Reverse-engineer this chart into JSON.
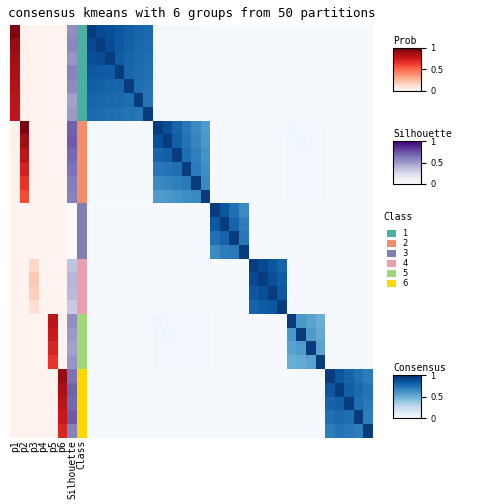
{
  "title": "consensus kmeans with 6 groups from 50 partitions",
  "n_groups": 6,
  "group_sizes": [
    7,
    6,
    4,
    4,
    4,
    5
  ],
  "class_colors": [
    "#4DAF9F",
    "#F28E6B",
    "#8080B0",
    "#E8A0B0",
    "#A0D878",
    "#FFD700"
  ],
  "title_fontsize": 9,
  "consensus_matrix": [
    [
      0.95,
      0.9,
      0.88,
      0.85,
      0.82,
      0.8,
      0.78,
      0.02,
      0.02,
      0.02,
      0.02,
      0.02,
      0.01,
      0.01,
      0.01,
      0.01,
      0.01,
      0.01,
      0.01,
      0.01,
      0.01,
      0.01,
      0.01,
      0.01,
      0.01,
      0.01,
      0.01,
      0.01,
      0.01,
      0.01
    ],
    [
      0.9,
      0.95,
      0.89,
      0.84,
      0.81,
      0.79,
      0.77,
      0.02,
      0.02,
      0.02,
      0.02,
      0.02,
      0.01,
      0.01,
      0.01,
      0.01,
      0.01,
      0.01,
      0.01,
      0.01,
      0.01,
      0.01,
      0.01,
      0.01,
      0.01,
      0.01,
      0.01,
      0.01,
      0.01,
      0.01
    ],
    [
      0.88,
      0.89,
      0.95,
      0.83,
      0.8,
      0.78,
      0.76,
      0.02,
      0.02,
      0.02,
      0.02,
      0.02,
      0.01,
      0.01,
      0.01,
      0.01,
      0.01,
      0.01,
      0.01,
      0.01,
      0.01,
      0.01,
      0.01,
      0.01,
      0.01,
      0.01,
      0.01,
      0.01,
      0.01,
      0.01
    ],
    [
      0.85,
      0.84,
      0.83,
      0.95,
      0.79,
      0.77,
      0.75,
      0.02,
      0.02,
      0.02,
      0.02,
      0.02,
      0.01,
      0.01,
      0.01,
      0.01,
      0.01,
      0.01,
      0.01,
      0.01,
      0.01,
      0.01,
      0.01,
      0.01,
      0.01,
      0.01,
      0.01,
      0.01,
      0.01,
      0.01
    ],
    [
      0.82,
      0.81,
      0.8,
      0.79,
      0.95,
      0.76,
      0.74,
      0.02,
      0.02,
      0.02,
      0.02,
      0.02,
      0.01,
      0.01,
      0.01,
      0.01,
      0.01,
      0.01,
      0.01,
      0.01,
      0.01,
      0.01,
      0.01,
      0.01,
      0.01,
      0.01,
      0.01,
      0.01,
      0.01,
      0.01
    ],
    [
      0.8,
      0.79,
      0.78,
      0.77,
      0.76,
      0.95,
      0.73,
      0.02,
      0.02,
      0.02,
      0.02,
      0.02,
      0.01,
      0.01,
      0.01,
      0.01,
      0.01,
      0.01,
      0.01,
      0.01,
      0.01,
      0.01,
      0.01,
      0.01,
      0.01,
      0.01,
      0.01,
      0.01,
      0.01,
      0.01
    ],
    [
      0.78,
      0.77,
      0.76,
      0.75,
      0.74,
      0.73,
      0.95,
      0.02,
      0.02,
      0.02,
      0.02,
      0.02,
      0.01,
      0.01,
      0.01,
      0.01,
      0.01,
      0.01,
      0.01,
      0.01,
      0.01,
      0.01,
      0.01,
      0.01,
      0.01,
      0.01,
      0.01,
      0.01,
      0.01,
      0.01
    ],
    [
      0.02,
      0.02,
      0.02,
      0.02,
      0.02,
      0.02,
      0.02,
      0.95,
      0.88,
      0.8,
      0.72,
      0.65,
      0.58,
      0.01,
      0.01,
      0.01,
      0.01,
      0.01,
      0.01,
      0.01,
      0.01,
      0.04,
      0.03,
      0.03,
      0.03,
      0.01,
      0.01,
      0.01,
      0.01,
      0.01
    ],
    [
      0.02,
      0.02,
      0.02,
      0.02,
      0.02,
      0.02,
      0.02,
      0.88,
      0.95,
      0.82,
      0.74,
      0.67,
      0.6,
      0.01,
      0.01,
      0.01,
      0.01,
      0.01,
      0.01,
      0.01,
      0.01,
      0.03,
      0.04,
      0.03,
      0.03,
      0.01,
      0.01,
      0.01,
      0.01,
      0.01
    ],
    [
      0.02,
      0.02,
      0.02,
      0.02,
      0.02,
      0.02,
      0.02,
      0.8,
      0.82,
      0.95,
      0.76,
      0.69,
      0.62,
      0.01,
      0.01,
      0.01,
      0.01,
      0.01,
      0.01,
      0.01,
      0.01,
      0.03,
      0.03,
      0.03,
      0.03,
      0.01,
      0.01,
      0.01,
      0.01,
      0.01
    ],
    [
      0.02,
      0.02,
      0.02,
      0.02,
      0.02,
      0.02,
      0.02,
      0.72,
      0.74,
      0.76,
      0.95,
      0.71,
      0.64,
      0.01,
      0.01,
      0.01,
      0.01,
      0.01,
      0.01,
      0.01,
      0.01,
      0.03,
      0.03,
      0.03,
      0.03,
      0.01,
      0.01,
      0.01,
      0.01,
      0.01
    ],
    [
      0.02,
      0.02,
      0.02,
      0.02,
      0.02,
      0.02,
      0.02,
      0.65,
      0.67,
      0.69,
      0.71,
      0.95,
      0.66,
      0.01,
      0.01,
      0.01,
      0.01,
      0.01,
      0.01,
      0.01,
      0.01,
      0.03,
      0.03,
      0.03,
      0.03,
      0.01,
      0.01,
      0.01,
      0.01,
      0.01
    ],
    [
      0.02,
      0.02,
      0.02,
      0.02,
      0.02,
      0.02,
      0.02,
      0.58,
      0.6,
      0.62,
      0.64,
      0.66,
      0.95,
      0.01,
      0.01,
      0.01,
      0.01,
      0.01,
      0.01,
      0.01,
      0.01,
      0.03,
      0.03,
      0.03,
      0.03,
      0.01,
      0.01,
      0.01,
      0.01,
      0.01
    ],
    [
      0.01,
      0.01,
      0.01,
      0.01,
      0.01,
      0.01,
      0.01,
      0.01,
      0.01,
      0.01,
      0.01,
      0.01,
      0.01,
      0.95,
      0.85,
      0.75,
      0.65,
      0.01,
      0.01,
      0.01,
      0.01,
      0.01,
      0.01,
      0.01,
      0.01,
      0.01,
      0.01,
      0.01,
      0.01,
      0.01
    ],
    [
      0.01,
      0.01,
      0.01,
      0.01,
      0.01,
      0.01,
      0.01,
      0.01,
      0.01,
      0.01,
      0.01,
      0.01,
      0.01,
      0.85,
      0.95,
      0.8,
      0.7,
      0.01,
      0.01,
      0.01,
      0.01,
      0.01,
      0.01,
      0.01,
      0.01,
      0.01,
      0.01,
      0.01,
      0.01,
      0.01
    ],
    [
      0.01,
      0.01,
      0.01,
      0.01,
      0.01,
      0.01,
      0.01,
      0.01,
      0.01,
      0.01,
      0.01,
      0.01,
      0.01,
      0.75,
      0.8,
      0.95,
      0.72,
      0.01,
      0.01,
      0.01,
      0.01,
      0.01,
      0.01,
      0.01,
      0.01,
      0.01,
      0.01,
      0.01,
      0.01,
      0.01
    ],
    [
      0.01,
      0.01,
      0.01,
      0.01,
      0.01,
      0.01,
      0.01,
      0.01,
      0.01,
      0.01,
      0.01,
      0.01,
      0.01,
      0.65,
      0.7,
      0.72,
      0.95,
      0.01,
      0.01,
      0.01,
      0.01,
      0.01,
      0.01,
      0.01,
      0.01,
      0.01,
      0.01,
      0.01,
      0.01,
      0.01
    ],
    [
      0.01,
      0.01,
      0.01,
      0.01,
      0.01,
      0.01,
      0.01,
      0.01,
      0.01,
      0.01,
      0.01,
      0.01,
      0.01,
      0.01,
      0.01,
      0.01,
      0.01,
      0.95,
      0.9,
      0.85,
      0.8,
      0.01,
      0.01,
      0.01,
      0.01,
      0.01,
      0.01,
      0.01,
      0.01,
      0.01
    ],
    [
      0.01,
      0.01,
      0.01,
      0.01,
      0.01,
      0.01,
      0.01,
      0.01,
      0.01,
      0.01,
      0.01,
      0.01,
      0.01,
      0.01,
      0.01,
      0.01,
      0.01,
      0.9,
      0.95,
      0.88,
      0.83,
      0.01,
      0.01,
      0.01,
      0.01,
      0.01,
      0.01,
      0.01,
      0.01,
      0.01
    ],
    [
      0.01,
      0.01,
      0.01,
      0.01,
      0.01,
      0.01,
      0.01,
      0.01,
      0.01,
      0.01,
      0.01,
      0.01,
      0.01,
      0.01,
      0.01,
      0.01,
      0.01,
      0.85,
      0.88,
      0.95,
      0.85,
      0.01,
      0.01,
      0.01,
      0.01,
      0.01,
      0.01,
      0.01,
      0.01,
      0.01
    ],
    [
      0.01,
      0.01,
      0.01,
      0.01,
      0.01,
      0.01,
      0.01,
      0.01,
      0.01,
      0.01,
      0.01,
      0.01,
      0.01,
      0.01,
      0.01,
      0.01,
      0.01,
      0.8,
      0.83,
      0.85,
      0.95,
      0.01,
      0.01,
      0.01,
      0.01,
      0.01,
      0.01,
      0.01,
      0.01,
      0.01
    ],
    [
      0.01,
      0.01,
      0.01,
      0.01,
      0.01,
      0.01,
      0.01,
      0.04,
      0.03,
      0.03,
      0.03,
      0.03,
      0.03,
      0.01,
      0.01,
      0.01,
      0.01,
      0.01,
      0.01,
      0.01,
      0.01,
      0.95,
      0.6,
      0.55,
      0.5,
      0.01,
      0.01,
      0.01,
      0.01,
      0.01
    ],
    [
      0.01,
      0.01,
      0.01,
      0.01,
      0.01,
      0.01,
      0.01,
      0.03,
      0.04,
      0.03,
      0.03,
      0.03,
      0.03,
      0.01,
      0.01,
      0.01,
      0.01,
      0.01,
      0.01,
      0.01,
      0.01,
      0.6,
      0.95,
      0.58,
      0.52,
      0.01,
      0.01,
      0.01,
      0.01,
      0.01
    ],
    [
      0.01,
      0.01,
      0.01,
      0.01,
      0.01,
      0.01,
      0.01,
      0.03,
      0.03,
      0.03,
      0.03,
      0.03,
      0.03,
      0.01,
      0.01,
      0.01,
      0.01,
      0.01,
      0.01,
      0.01,
      0.01,
      0.55,
      0.58,
      0.95,
      0.55,
      0.01,
      0.01,
      0.01,
      0.01,
      0.01
    ],
    [
      0.01,
      0.01,
      0.01,
      0.01,
      0.01,
      0.01,
      0.01,
      0.03,
      0.03,
      0.03,
      0.03,
      0.03,
      0.03,
      0.01,
      0.01,
      0.01,
      0.01,
      0.01,
      0.01,
      0.01,
      0.01,
      0.5,
      0.52,
      0.55,
      0.95,
      0.01,
      0.01,
      0.01,
      0.01,
      0.01
    ],
    [
      0.01,
      0.01,
      0.01,
      0.01,
      0.01,
      0.01,
      0.01,
      0.01,
      0.01,
      0.01,
      0.01,
      0.01,
      0.01,
      0.01,
      0.01,
      0.01,
      0.01,
      0.01,
      0.01,
      0.01,
      0.01,
      0.01,
      0.01,
      0.01,
      0.01,
      0.95,
      0.85,
      0.8,
      0.75,
      0.7
    ],
    [
      0.01,
      0.01,
      0.01,
      0.01,
      0.01,
      0.01,
      0.01,
      0.01,
      0.01,
      0.01,
      0.01,
      0.01,
      0.01,
      0.01,
      0.01,
      0.01,
      0.01,
      0.01,
      0.01,
      0.01,
      0.01,
      0.01,
      0.01,
      0.01,
      0.01,
      0.85,
      0.95,
      0.82,
      0.78,
      0.74
    ],
    [
      0.01,
      0.01,
      0.01,
      0.01,
      0.01,
      0.01,
      0.01,
      0.01,
      0.01,
      0.01,
      0.01,
      0.01,
      0.01,
      0.01,
      0.01,
      0.01,
      0.01,
      0.01,
      0.01,
      0.01,
      0.01,
      0.01,
      0.01,
      0.01,
      0.01,
      0.8,
      0.82,
      0.95,
      0.76,
      0.72
    ],
    [
      0.01,
      0.01,
      0.01,
      0.01,
      0.01,
      0.01,
      0.01,
      0.01,
      0.01,
      0.01,
      0.01,
      0.01,
      0.01,
      0.01,
      0.01,
      0.01,
      0.01,
      0.01,
      0.01,
      0.01,
      0.01,
      0.01,
      0.01,
      0.01,
      0.01,
      0.75,
      0.78,
      0.76,
      0.95,
      0.7
    ],
    [
      0.01,
      0.01,
      0.01,
      0.01,
      0.01,
      0.01,
      0.01,
      0.01,
      0.01,
      0.01,
      0.01,
      0.01,
      0.01,
      0.01,
      0.01,
      0.01,
      0.01,
      0.01,
      0.01,
      0.01,
      0.01,
      0.01,
      0.01,
      0.01,
      0.01,
      0.7,
      0.74,
      0.72,
      0.7,
      0.95
    ]
  ],
  "prob_data": [
    [
      0.95,
      0.02,
      0.01,
      0.01,
      0.01,
      0.01
    ],
    [
      0.9,
      0.02,
      0.01,
      0.01,
      0.01,
      0.01
    ],
    [
      0.88,
      0.02,
      0.01,
      0.01,
      0.01,
      0.01
    ],
    [
      0.85,
      0.02,
      0.01,
      0.01,
      0.01,
      0.01
    ],
    [
      0.82,
      0.02,
      0.01,
      0.01,
      0.01,
      0.01
    ],
    [
      0.8,
      0.02,
      0.01,
      0.01,
      0.01,
      0.01
    ],
    [
      0.78,
      0.02,
      0.01,
      0.01,
      0.01,
      0.01
    ],
    [
      0.02,
      0.95,
      0.01,
      0.01,
      0.01,
      0.01
    ],
    [
      0.02,
      0.88,
      0.01,
      0.01,
      0.01,
      0.01
    ],
    [
      0.02,
      0.8,
      0.01,
      0.01,
      0.01,
      0.01
    ],
    [
      0.02,
      0.72,
      0.01,
      0.01,
      0.01,
      0.01
    ],
    [
      0.02,
      0.65,
      0.01,
      0.01,
      0.01,
      0.01
    ],
    [
      0.02,
      0.58,
      0.01,
      0.01,
      0.01,
      0.01
    ],
    [
      0.01,
      0.01,
      0.01,
      0.01,
      0.01,
      0.01
    ],
    [
      0.01,
      0.01,
      0.01,
      0.01,
      0.01,
      0.01
    ],
    [
      0.01,
      0.01,
      0.01,
      0.01,
      0.01,
      0.01
    ],
    [
      0.01,
      0.01,
      0.01,
      0.01,
      0.01,
      0.01
    ],
    [
      0.01,
      0.01,
      0.15,
      0.01,
      0.01,
      0.01
    ],
    [
      0.01,
      0.01,
      0.2,
      0.01,
      0.01,
      0.01
    ],
    [
      0.01,
      0.01,
      0.18,
      0.01,
      0.01,
      0.01
    ],
    [
      0.01,
      0.01,
      0.12,
      0.01,
      0.01,
      0.01
    ],
    [
      0.01,
      0.01,
      0.01,
      0.01,
      0.8,
      0.01
    ],
    [
      0.01,
      0.01,
      0.01,
      0.01,
      0.75,
      0.01
    ],
    [
      0.01,
      0.01,
      0.01,
      0.01,
      0.7,
      0.01
    ],
    [
      0.01,
      0.01,
      0.01,
      0.01,
      0.65,
      0.01
    ],
    [
      0.01,
      0.01,
      0.01,
      0.01,
      0.01,
      0.9
    ],
    [
      0.01,
      0.01,
      0.01,
      0.01,
      0.01,
      0.85
    ],
    [
      0.01,
      0.01,
      0.01,
      0.01,
      0.01,
      0.8
    ],
    [
      0.01,
      0.01,
      0.01,
      0.01,
      0.01,
      0.75
    ],
    [
      0.01,
      0.01,
      0.01,
      0.01,
      0.01,
      0.7
    ]
  ],
  "silhouette_data": [
    0.55,
    0.58,
    0.52,
    0.6,
    0.56,
    0.48,
    0.5,
    0.7,
    0.72,
    0.68,
    0.65,
    0.62,
    0.6,
    0.01,
    0.01,
    0.01,
    0.01,
    0.35,
    0.4,
    0.38,
    0.32,
    0.55,
    0.5,
    0.48,
    0.52,
    0.65,
    0.7,
    0.68,
    0.72,
    0.6
  ],
  "group_assignments": [
    1,
    1,
    1,
    1,
    1,
    1,
    1,
    2,
    2,
    2,
    2,
    2,
    2,
    3,
    3,
    3,
    3,
    4,
    4,
    4,
    4,
    5,
    5,
    5,
    5,
    6,
    6,
    6,
    6,
    6
  ]
}
